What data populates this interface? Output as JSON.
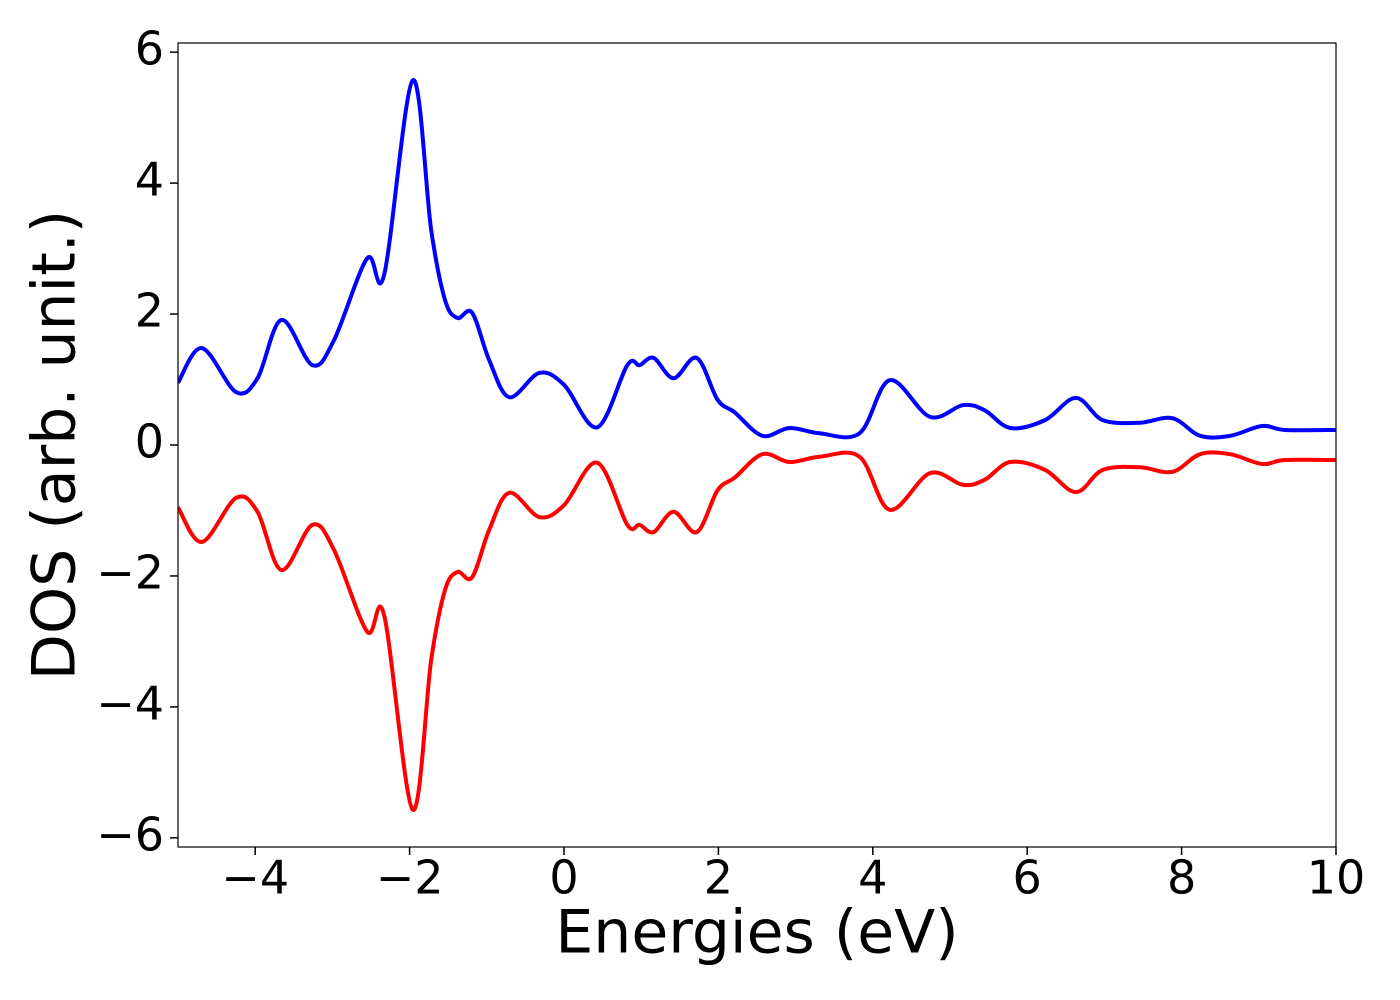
{
  "chart_data": {
    "type": "line",
    "x_label": "Energies (eV)",
    "y_label": "DOS (arb. unit.)",
    "x": [
      -5,
      -4.69,
      -4.25,
      -3.97,
      -3.66,
      -3.26,
      -2.98,
      -2.55,
      -2.33,
      -1.96,
      -1.72,
      -1.54,
      -1.38,
      -1.19,
      -0.97,
      -0.71,
      -0.32,
      0,
      0.43,
      0.82,
      0.98,
      1.16,
      1.42,
      1.72,
      1.99,
      2.21,
      2.57,
      2.92,
      3.31,
      3.83,
      4.22,
      4.74,
      5.17,
      5.45,
      5.78,
      6.23,
      6.63,
      6.98,
      7.46,
      7.88,
      8.24,
      8.63,
      9.04,
      9.34,
      10
    ],
    "series": [
      {
        "color": "#0000ff",
        "values": [
          0.95,
          1.48,
          0.81,
          1.02,
          1.91,
          1.22,
          1.6,
          2.85,
          2.6,
          5.57,
          3.28,
          2.21,
          1.94,
          2.02,
          1.3,
          0.73,
          1.1,
          0.92,
          0.27,
          1.22,
          1.22,
          1.33,
          1.02,
          1.33,
          0.69,
          0.5,
          0.14,
          0.26,
          0.18,
          0.18,
          0.99,
          0.43,
          0.61,
          0.53,
          0.26,
          0.38,
          0.72,
          0.38,
          0.34,
          0.41,
          0.14,
          0.14,
          0.29,
          0.23,
          0.23
        ]
      },
      {
        "color": "#ff0000",
        "values": [
          -0.95,
          -1.48,
          -0.81,
          -1.02,
          -1.91,
          -1.22,
          -1.6,
          -2.85,
          -2.6,
          -5.57,
          -3.28,
          -2.21,
          -1.94,
          -2.02,
          -1.3,
          -0.73,
          -1.1,
          -0.92,
          -0.27,
          -1.22,
          -1.22,
          -1.33,
          -1.02,
          -1.33,
          -0.69,
          -0.5,
          -0.14,
          -0.26,
          -0.18,
          -0.18,
          -0.99,
          -0.43,
          -0.61,
          -0.53,
          -0.26,
          -0.38,
          -0.72,
          -0.38,
          -0.34,
          -0.41,
          -0.14,
          -0.14,
          -0.29,
          -0.23,
          -0.23
        ]
      }
    ],
    "xlim": [
      -5,
      10
    ],
    "xticks": [
      {
        "value": -4,
        "label": "−4"
      },
      {
        "value": -2,
        "label": "−2"
      },
      0,
      2,
      4,
      6,
      8,
      10
    ],
    "ylim": [
      -6.14,
      6.14
    ],
    "yticks": [
      {
        "value": -6,
        "label": "−6"
      },
      {
        "value": -4,
        "label": "−4"
      },
      {
        "value": -2,
        "label": "−2"
      },
      0,
      2,
      4,
      6
    ]
  }
}
